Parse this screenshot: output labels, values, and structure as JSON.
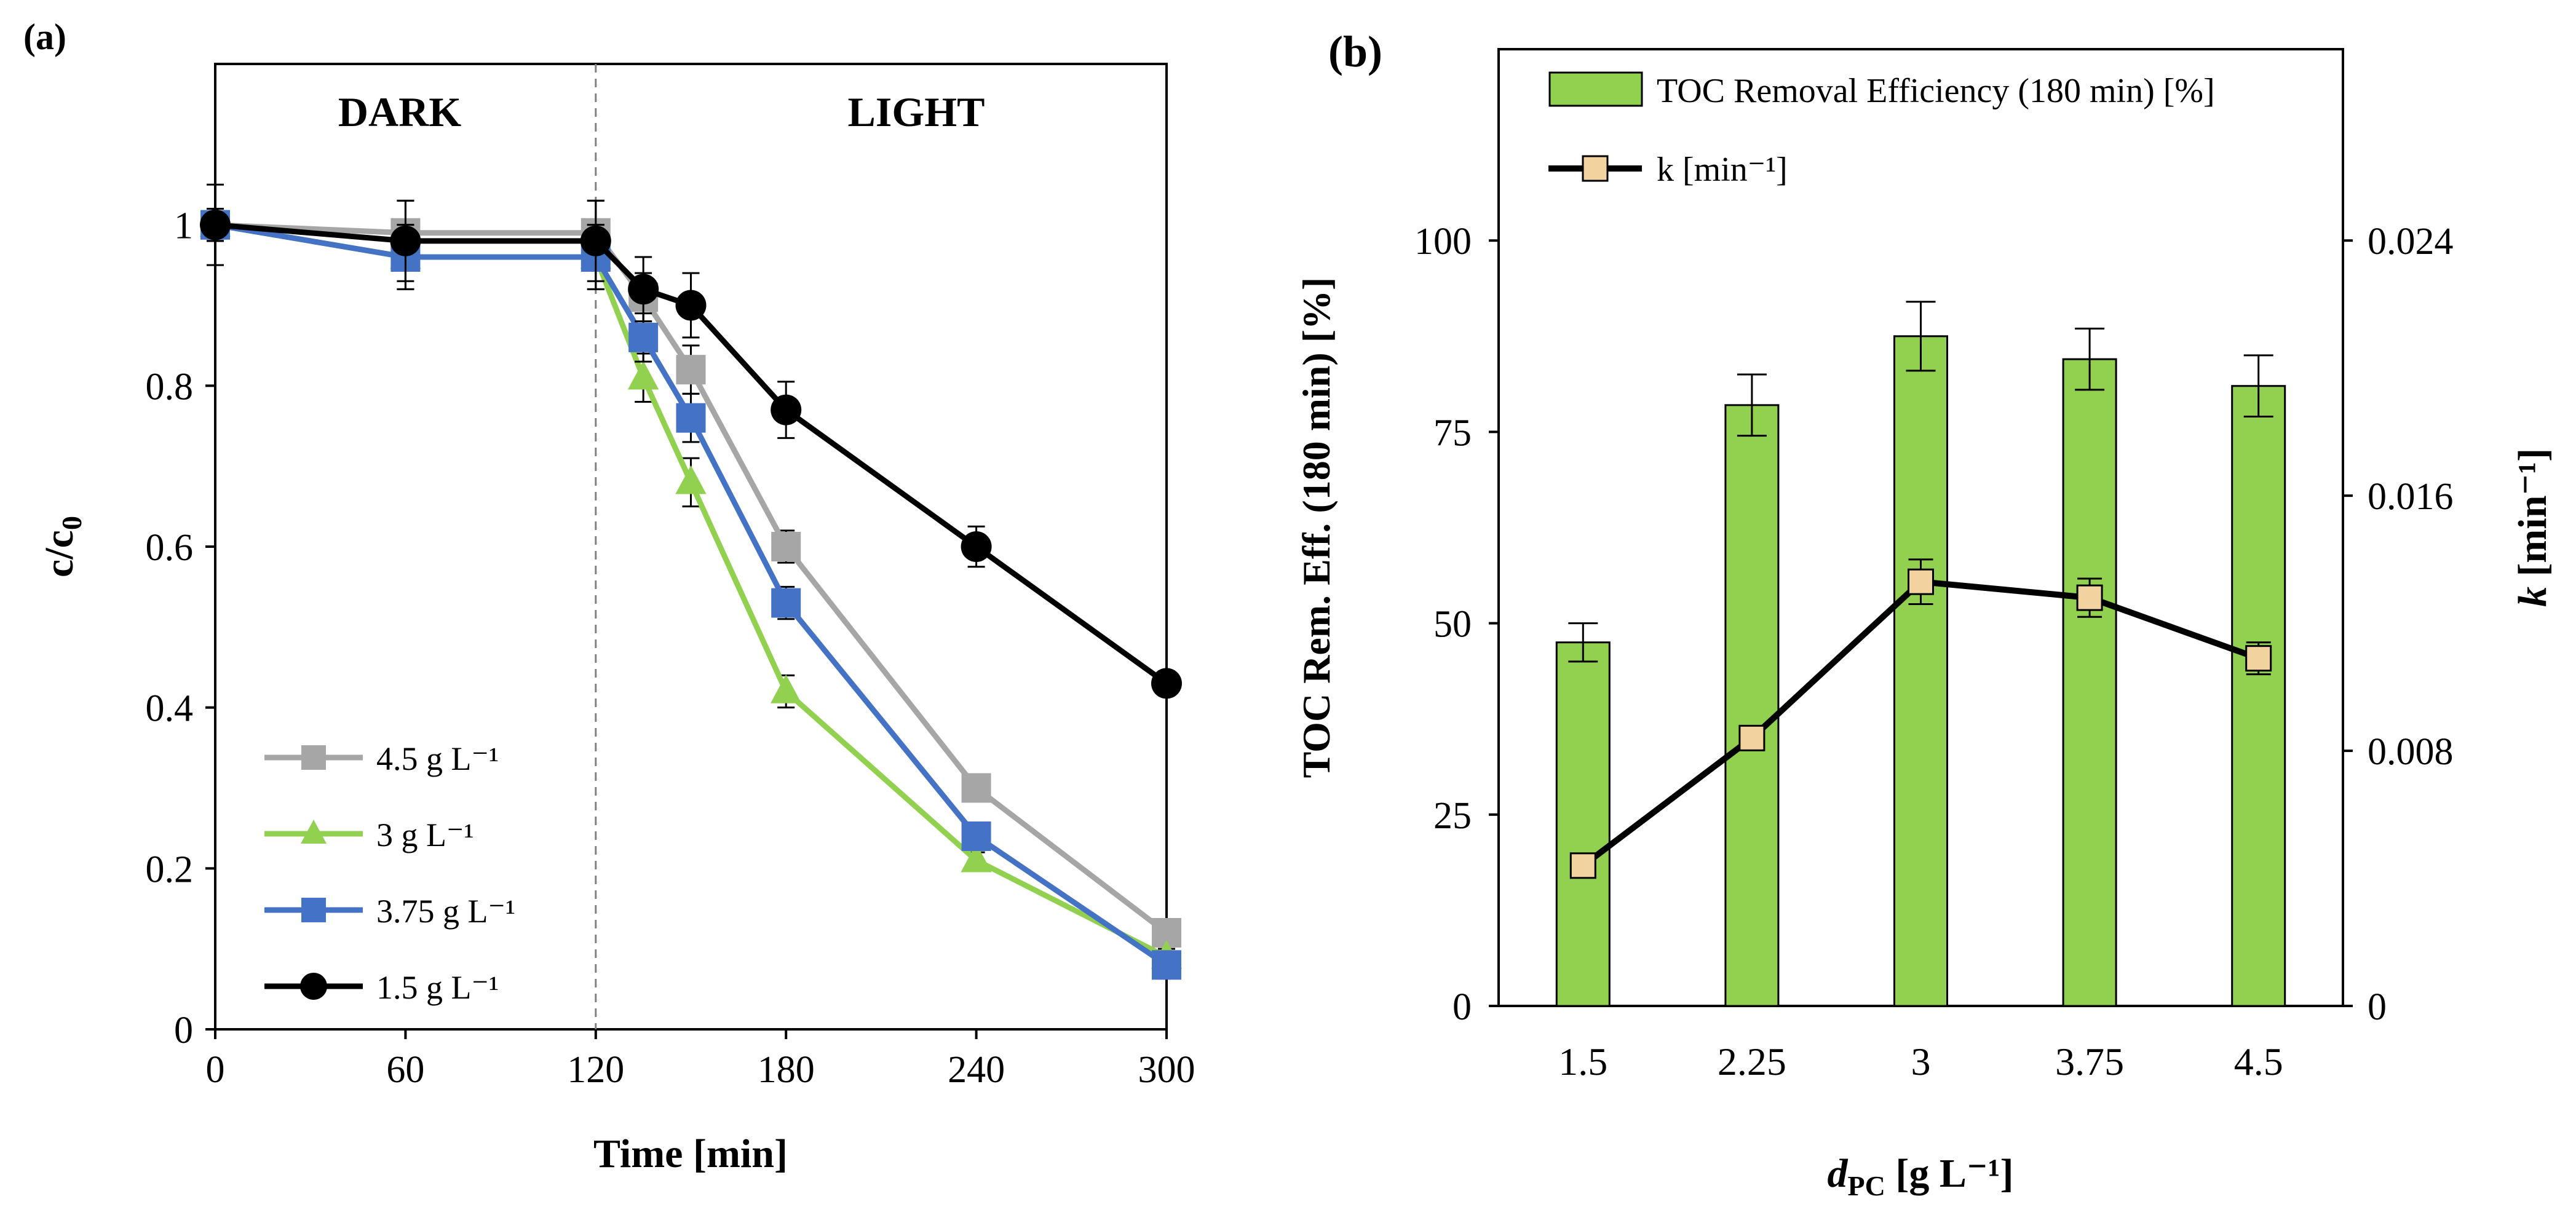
{
  "chart_data": [
    {
      "panel": "(a)",
      "type": "line",
      "xlabel": "Time [min]",
      "ylabel_main": "c/c",
      "ylabel_sub": "0",
      "xlim": [
        0,
        300
      ],
      "ylim": [
        0,
        1.2
      ],
      "xticks": [
        0,
        60,
        120,
        180,
        240,
        300
      ],
      "xtick_labels": [
        "0",
        "60",
        "120",
        "180",
        "240",
        "300"
      ],
      "yticks": [
        0,
        0.2,
        0.4,
        0.6,
        0.8,
        1
      ],
      "ytick_labels": [
        "0",
        "0.2",
        "0.4",
        "0.6",
        "0.8",
        "1"
      ],
      "divider_x": 120,
      "region_labels": {
        "dark": "DARK",
        "light": "LIGHT"
      },
      "legend_position": "bottom-left",
      "series": [
        {
          "name": "4.5 g L⁻¹",
          "color": "#a6a6a6",
          "marker": "square",
          "x": [
            0,
            60,
            120,
            135,
            150,
            180,
            240,
            300
          ],
          "y": [
            1.0,
            0.99,
            0.99,
            0.91,
            0.82,
            0.6,
            0.3,
            0.12
          ],
          "err": [
            0.02,
            0.04,
            0.04,
            0.03,
            0.03,
            0.02,
            0.01,
            0.01
          ]
        },
        {
          "name": "3 g L⁻¹",
          "color": "#92d050",
          "marker": "triangle",
          "x": [
            0,
            60,
            120,
            135,
            150,
            180,
            240,
            300
          ],
          "y": [
            1.0,
            0.96,
            0.96,
            0.81,
            0.68,
            0.42,
            0.21,
            0.09
          ],
          "err": [
            0.02,
            0.04,
            0.04,
            0.03,
            0.03,
            0.02,
            0.01,
            0.01
          ]
        },
        {
          "name": "3.75 g L⁻¹",
          "color": "#4472c4",
          "marker": "square",
          "x": [
            0,
            60,
            120,
            135,
            150,
            180,
            240,
            300
          ],
          "y": [
            1.0,
            0.96,
            0.96,
            0.86,
            0.76,
            0.53,
            0.24,
            0.08
          ],
          "err": [
            0.02,
            0.04,
            0.04,
            0.03,
            0.03,
            0.02,
            0.01,
            0.01
          ]
        },
        {
          "name": "1.5 g L⁻¹",
          "color": "#000000",
          "marker": "circle",
          "x": [
            0,
            60,
            120,
            135,
            150,
            180,
            240,
            300
          ],
          "y": [
            1.0,
            0.98,
            0.98,
            0.92,
            0.9,
            0.77,
            0.6,
            0.43
          ],
          "err": [
            0.05,
            0.05,
            0.05,
            0.04,
            0.04,
            0.035,
            0.025,
            0.015
          ]
        }
      ]
    },
    {
      "panel": "(b)",
      "type": "bar",
      "categories": [
        "1.5",
        "2.25",
        "3",
        "3.75",
        "4.5"
      ],
      "xlabel_italic": "d",
      "xlabel_sub": "PC",
      "xlabel_rest": " [g L⁻¹]",
      "ylabel_left": "TOC Rem. Eff. (180 min) [%]",
      "ylabel_right_italic": "k",
      "ylabel_right_rest": " [min⁻¹]",
      "ylim_left": [
        0,
        125
      ],
      "ylim_right": [
        0,
        0.03
      ],
      "yticks_left": [
        0,
        25,
        50,
        75,
        100
      ],
      "ytick_labels_left": [
        "0",
        "25",
        "50",
        "75",
        "100"
      ],
      "yticks_right": [
        0,
        0.008,
        0.016,
        0.024
      ],
      "ytick_labels_right": [
        "0",
        "0.008",
        "0.016",
        "0.024"
      ],
      "legend_position": "top-left",
      "series": [
        {
          "name": "TOC Removal Efficiency (180 min) [%]",
          "type": "bar",
          "axis": "left",
          "color": "#92d050",
          "values": [
            47.5,
            78.5,
            87.5,
            84.5,
            81
          ],
          "err": [
            2.5,
            4.0,
            4.5,
            4.0,
            4.0
          ]
        },
        {
          "name": "k [min⁻¹]",
          "type": "line",
          "axis": "right",
          "color": "#000000",
          "marker_color": "#f2d3a0",
          "values": [
            0.0044,
            0.0084,
            0.0133,
            0.0128,
            0.0109
          ],
          "err": [
            0.0002,
            0.0003,
            0.0007,
            0.0006,
            0.0005
          ]
        }
      ]
    }
  ]
}
